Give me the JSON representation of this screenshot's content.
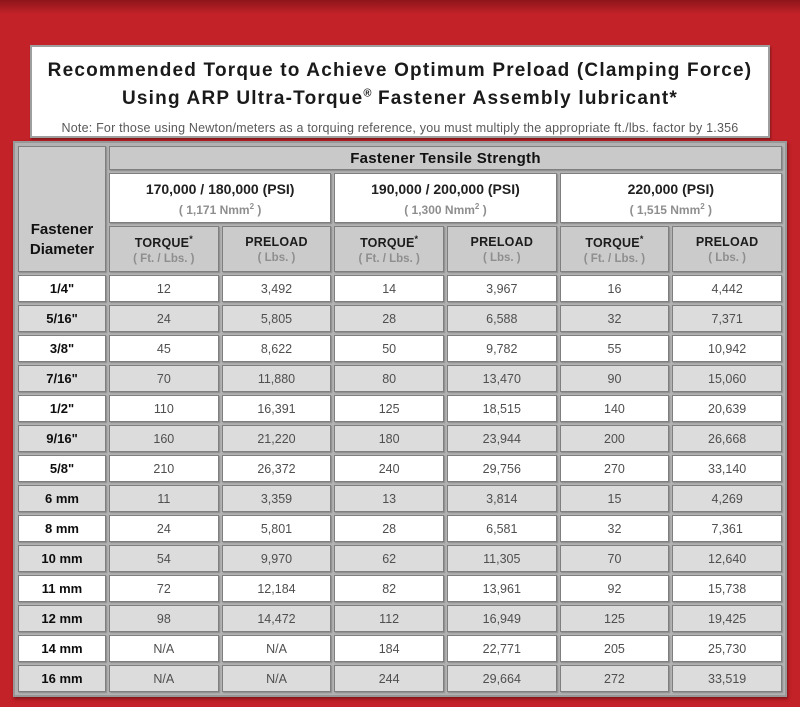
{
  "colors": {
    "frame_red": "#c22228",
    "header_gray": "#cbcbcb",
    "row_alt_gray": "#dcdcdc",
    "cell_border": "#7f7f7f",
    "sub_text_gray": "#8e8e8e"
  },
  "title": {
    "line1": "Recommended Torque to Achieve Optimum Preload (Clamping Force)",
    "line2a": "Using ARP Ultra-Torque",
    "line2_sup": "®",
    "line2b": " Fastener Assembly lubricant*",
    "note": "Note: For those using Newton/meters as a torquing reference, you must multiply the appropriate ft./lbs. factor by 1.356"
  },
  "table": {
    "corner_header_line1": "Fastener",
    "corner_header_line2": "Diameter",
    "tensile_header": "Fastener Tensile Strength",
    "groups": [
      {
        "psi": "170,000 / 180,000 (PSI)",
        "nmm": "( 1,171 Nmm",
        "nmm_sup": "2",
        "nmm_close": " )"
      },
      {
        "psi": "190,000 / 200,000 (PSI)",
        "nmm": "( 1,300 Nmm",
        "nmm_sup": "2",
        "nmm_close": " )"
      },
      {
        "psi": "220,000 (PSI)",
        "nmm": "( 1,515 Nmm",
        "nmm_sup": "2",
        "nmm_close": " )"
      }
    ],
    "col_headers": [
      {
        "label": "TORQUE",
        "label_sup": "*",
        "sub": "( Ft. / Lbs. )"
      },
      {
        "label": "PRELOAD",
        "label_sup": "",
        "sub": "( Lbs. )"
      },
      {
        "label": "TORQUE",
        "label_sup": "*",
        "sub": "( Ft. / Lbs. )"
      },
      {
        "label": "PRELOAD",
        "label_sup": "",
        "sub": "( Lbs. )"
      },
      {
        "label": "TORQUE",
        "label_sup": "*",
        "sub": "( Ft. / Lbs. )"
      },
      {
        "label": "PRELOAD",
        "label_sup": "",
        "sub": "( Lbs. )"
      }
    ],
    "rows": [
      {
        "dia": "1/4\"",
        "values": [
          "12",
          "3,492",
          "14",
          "3,967",
          "16",
          "4,442"
        ]
      },
      {
        "dia": "5/16\"",
        "values": [
          "24",
          "5,805",
          "28",
          "6,588",
          "32",
          "7,371"
        ]
      },
      {
        "dia": "3/8\"",
        "values": [
          "45",
          "8,622",
          "50",
          "9,782",
          "55",
          "10,942"
        ]
      },
      {
        "dia": "7/16\"",
        "values": [
          "70",
          "11,880",
          "80",
          "13,470",
          "90",
          "15,060"
        ]
      },
      {
        "dia": "1/2\"",
        "values": [
          "110",
          "16,391",
          "125",
          "18,515",
          "140",
          "20,639"
        ]
      },
      {
        "dia": "9/16\"",
        "values": [
          "160",
          "21,220",
          "180",
          "23,944",
          "200",
          "26,668"
        ]
      },
      {
        "dia": "5/8\"",
        "values": [
          "210",
          "26,372",
          "240",
          "29,756",
          "270",
          "33,140"
        ]
      },
      {
        "dia": "6 mm",
        "values": [
          "11",
          "3,359",
          "13",
          "3,814",
          "15",
          "4,269"
        ]
      },
      {
        "dia": "8 mm",
        "values": [
          "24",
          "5,801",
          "28",
          "6,581",
          "32",
          "7,361"
        ]
      },
      {
        "dia": "10 mm",
        "values": [
          "54",
          "9,970",
          "62",
          "11,305",
          "70",
          "12,640"
        ]
      },
      {
        "dia": "11 mm",
        "values": [
          "72",
          "12,184",
          "82",
          "13,961",
          "92",
          "15,738"
        ]
      },
      {
        "dia": "12 mm",
        "values": [
          "98",
          "14,472",
          "112",
          "16,949",
          "125",
          "19,425"
        ]
      },
      {
        "dia": "14 mm",
        "values": [
          "N/A",
          "N/A",
          "184",
          "22,771",
          "205",
          "25,730"
        ]
      },
      {
        "dia": "16 mm",
        "values": [
          "N/A",
          "N/A",
          "244",
          "29,664",
          "272",
          "33,519"
        ]
      }
    ]
  }
}
